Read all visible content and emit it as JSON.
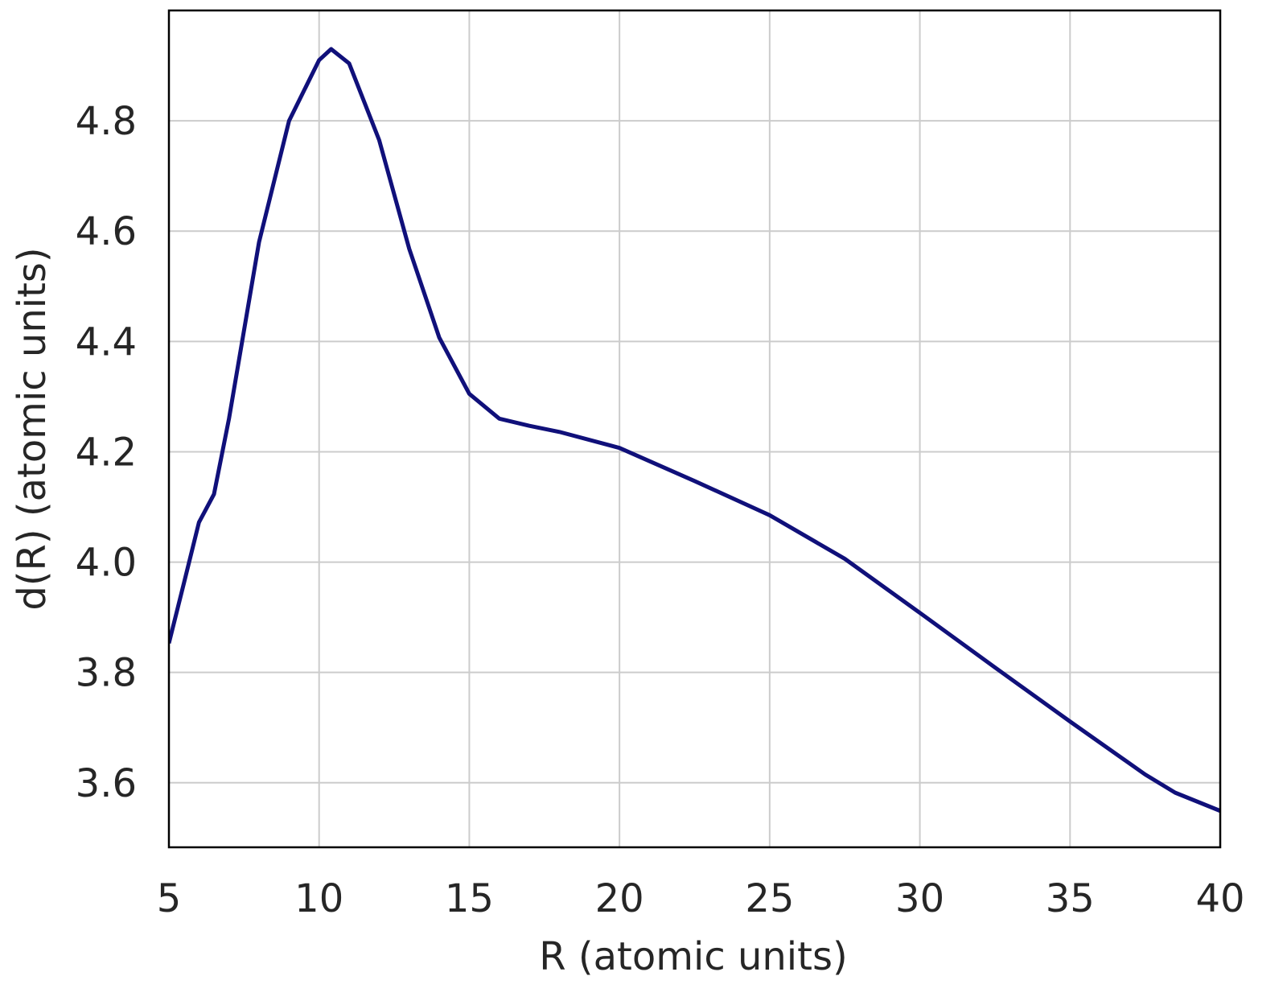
{
  "chart_data": {
    "type": "line",
    "xlabel": "R  (atomic units)",
    "ylabel": "d(R)  (atomic units)",
    "x": [
      5,
      5.5,
      6,
      6.5,
      7,
      8,
      9,
      10,
      10.4,
      11,
      12,
      13,
      14,
      15,
      16,
      17,
      18,
      20,
      22.5,
      25,
      27.5,
      30,
      32.5,
      35,
      37.5,
      38.5,
      40
    ],
    "series": [
      {
        "color": "#10107a",
        "values": [
          3.853,
          3.962,
          4.072,
          4.123,
          4.26,
          4.58,
          4.8,
          4.91,
          4.93,
          4.904,
          4.765,
          4.568,
          4.407,
          4.305,
          4.26,
          4.247,
          4.236,
          4.207,
          4.147,
          4.085,
          4.006,
          3.908,
          3.809,
          3.711,
          3.615,
          3.582,
          3.549
        ]
      }
    ],
    "xlim": [
      5,
      40
    ],
    "xticks": [
      5,
      10,
      15,
      20,
      25,
      30,
      35,
      40
    ],
    "ylim": [
      3.483,
      5.0
    ],
    "yticks": [
      3.6,
      3.8,
      {
        "value": 4,
        "label": "4.0"
      },
      4.2,
      4.4,
      4.6,
      4.8
    ],
    "grid": true
  }
}
